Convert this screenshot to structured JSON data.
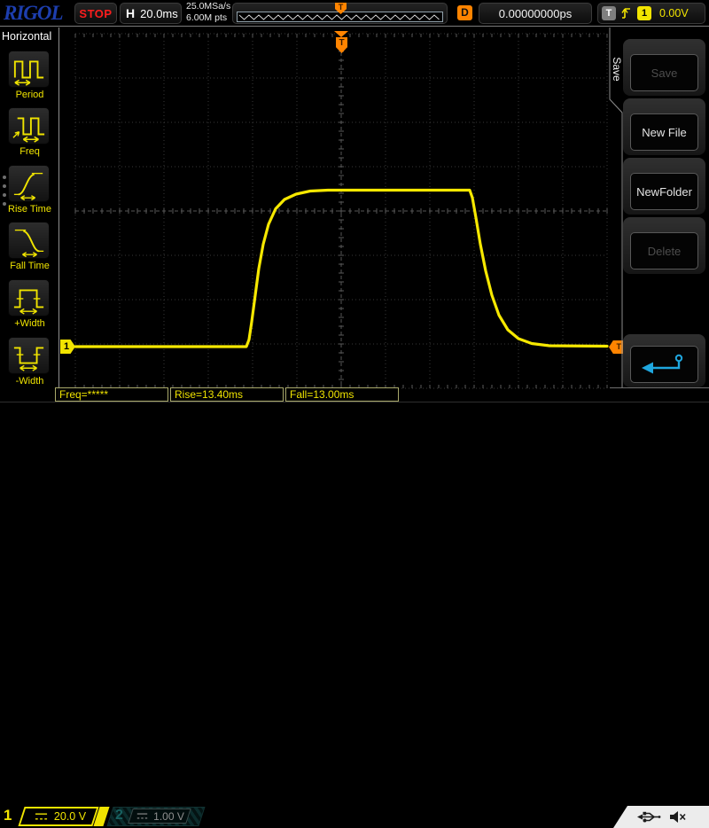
{
  "top_bar": {
    "logo": "RIGOL",
    "run_state": "STOP",
    "horizontal_label": "H",
    "timebase": "20.0ms",
    "sample_rate": "25.0MSa/s",
    "memory_depth": "6.00M pts",
    "delay_label": "D",
    "delay_value": "0.00000000ps",
    "trigger_label": "T",
    "trigger_source": "1",
    "trigger_level": "0.00V"
  },
  "left_menu": {
    "title": "Horizontal",
    "items": [
      {
        "label": "Period",
        "icon": "period-icon"
      },
      {
        "label": "Freq",
        "icon": "freq-icon"
      },
      {
        "label": "Rise Time",
        "icon": "rise-time-icon"
      },
      {
        "label": "Fall Time",
        "icon": "fall-time-icon"
      },
      {
        "label": "+Width",
        "icon": "plus-width-icon"
      },
      {
        "label": "-Width",
        "icon": "minus-width-icon"
      }
    ]
  },
  "right_menu": {
    "tab_label": "Save",
    "buttons": [
      {
        "label": "Save",
        "enabled": false
      },
      {
        "label": "New File",
        "enabled": true
      },
      {
        "label": "NewFolder",
        "enabled": true
      },
      {
        "label": "Delete",
        "enabled": false
      }
    ],
    "accent_color": "#1fa7df"
  },
  "measurements": [
    {
      "text": "Freq=*****"
    },
    {
      "text": "Rise=13.40ms"
    },
    {
      "text": "Fall=13.00ms"
    }
  ],
  "channels": [
    {
      "id": "1",
      "scale": "20.0 V",
      "active": true,
      "color": "#f0e400"
    },
    {
      "id": "2",
      "scale": "1.00 V",
      "active": false,
      "color": "#17605f"
    }
  ],
  "markers": {
    "trigger_position": "T",
    "trigger_level": "T",
    "memory_position": "T",
    "channel1": "1"
  },
  "chart_data": {
    "type": "line",
    "title": "",
    "xlabel": "time, 20.0ms/div, 12 divisions",
    "ylabel": "CH1 volts, 20.0 V/div, 8 divisions",
    "grid": true,
    "series": [
      {
        "name": "CH1",
        "color": "#f6e800",
        "points_div": [
          [
            0,
            7.06
          ],
          [
            3.86,
            7.06
          ],
          [
            3.92,
            6.9
          ],
          [
            3.98,
            6.5
          ],
          [
            4.06,
            5.9
          ],
          [
            4.14,
            5.3
          ],
          [
            4.24,
            4.75
          ],
          [
            4.36,
            4.3
          ],
          [
            4.52,
            3.95
          ],
          [
            4.72,
            3.74
          ],
          [
            4.98,
            3.62
          ],
          [
            5.3,
            3.55
          ],
          [
            5.7,
            3.53
          ],
          [
            8.9,
            3.53
          ],
          [
            8.96,
            3.7
          ],
          [
            9.04,
            4.15
          ],
          [
            9.14,
            4.75
          ],
          [
            9.26,
            5.35
          ],
          [
            9.4,
            5.9
          ],
          [
            9.56,
            6.35
          ],
          [
            9.76,
            6.68
          ],
          [
            10.0,
            6.88
          ],
          [
            10.3,
            6.99
          ],
          [
            10.7,
            7.04
          ],
          [
            12,
            7.05
          ]
        ]
      }
    ],
    "annotations": {
      "rise_time": "13.40ms",
      "fall_time": "13.00ms",
      "freq": "*****"
    }
  }
}
